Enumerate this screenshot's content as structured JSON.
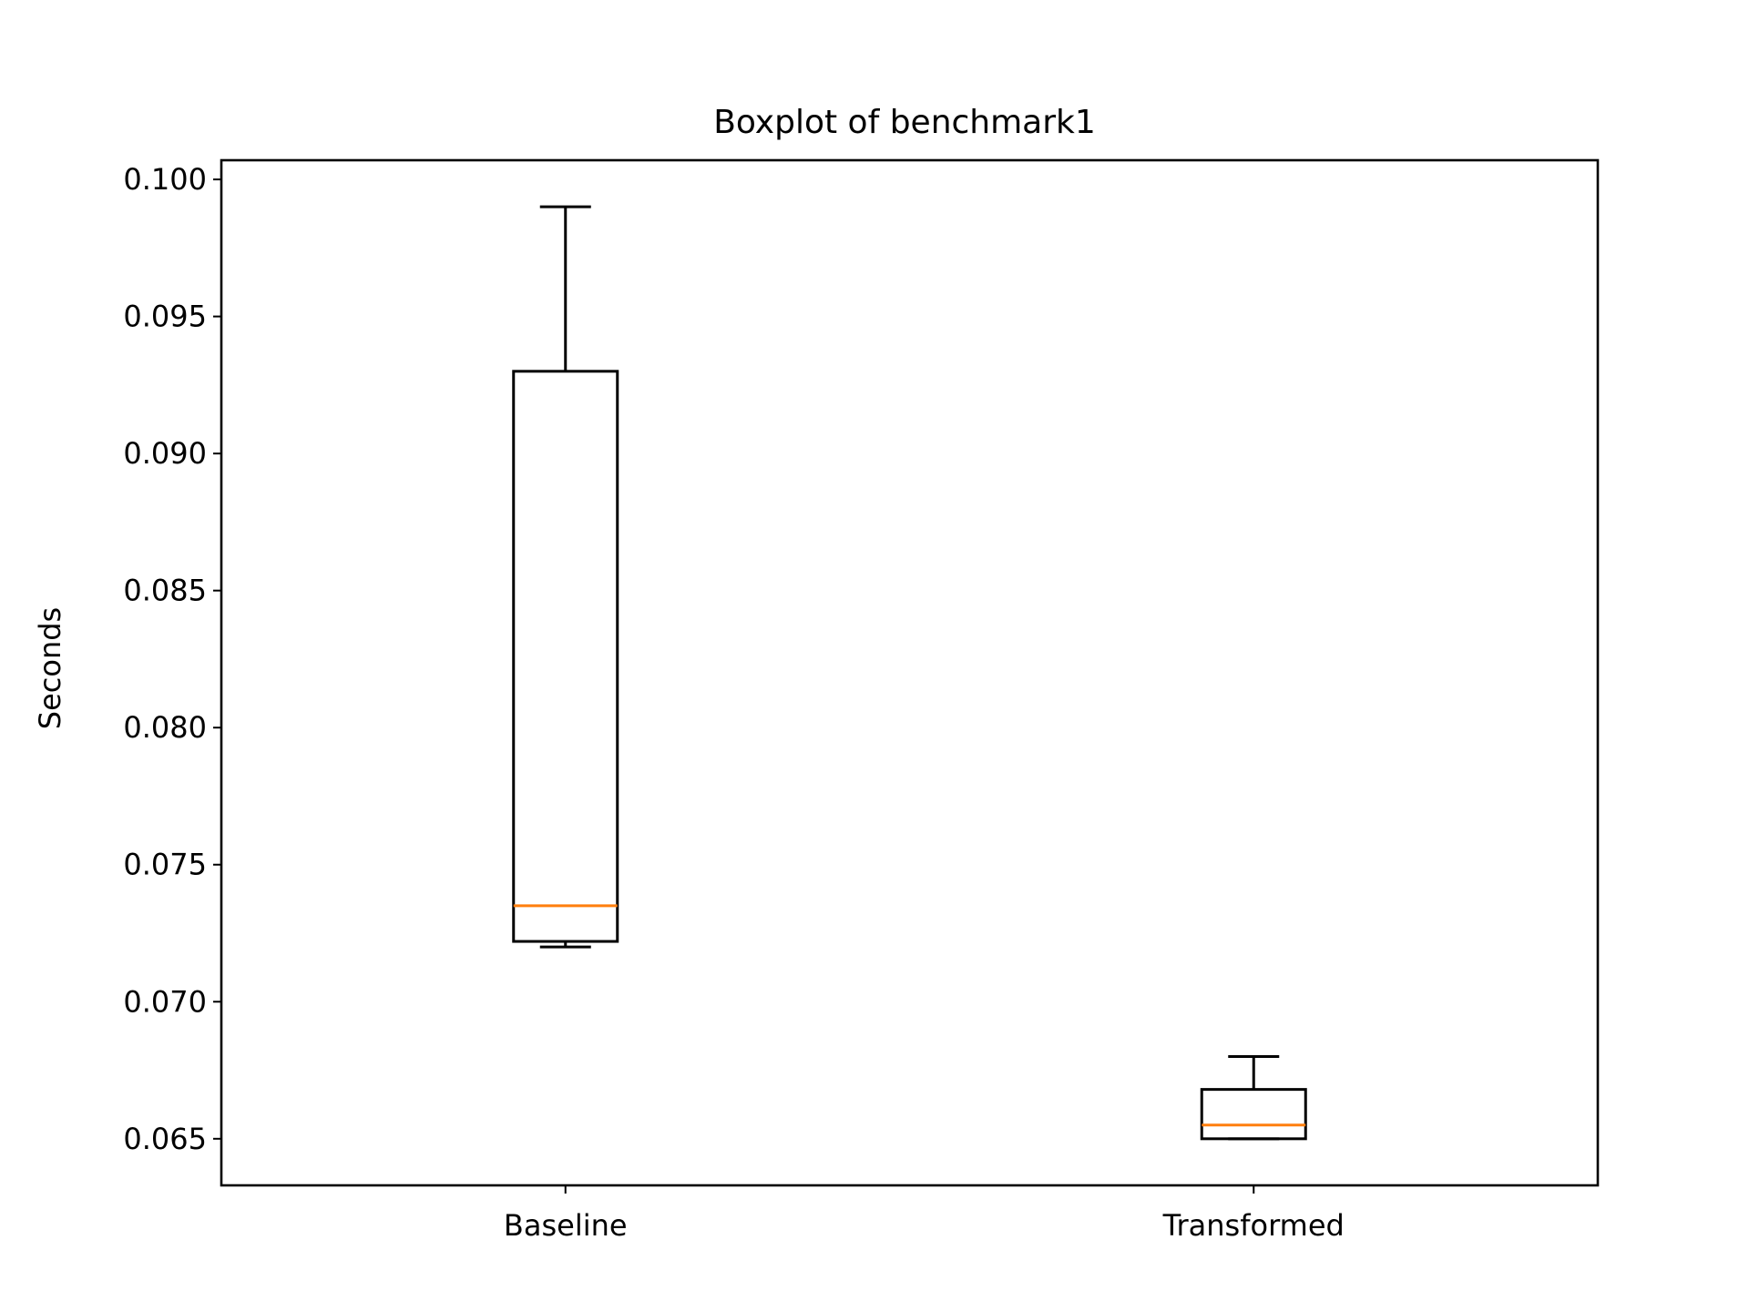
{
  "chart_data": {
    "type": "boxplot",
    "title": "Boxplot of benchmark1",
    "xlabel": "",
    "ylabel": "Seconds",
    "categories": [
      "Baseline",
      "Transformed"
    ],
    "ylim": [
      0.0633,
      0.1007
    ],
    "yticks": [
      0.065,
      0.07,
      0.075,
      0.08,
      0.085,
      0.09,
      0.095,
      0.1
    ],
    "ytick_labels": [
      "0.065",
      "0.070",
      "0.075",
      "0.080",
      "0.085",
      "0.090",
      "0.095",
      "0.100"
    ],
    "grid": false,
    "legend": "none",
    "boxes": [
      {
        "category": "Baseline",
        "whisker_low": 0.072,
        "q1": 0.0722,
        "median": 0.0735,
        "q3": 0.093,
        "whisker_high": 0.099
      },
      {
        "category": "Transformed",
        "whisker_low": 0.065,
        "q1": 0.065,
        "median": 0.0655,
        "q3": 0.0668,
        "whisker_high": 0.068
      }
    ],
    "colors": {
      "box": "#000000",
      "median": "#ff7f0e"
    }
  }
}
